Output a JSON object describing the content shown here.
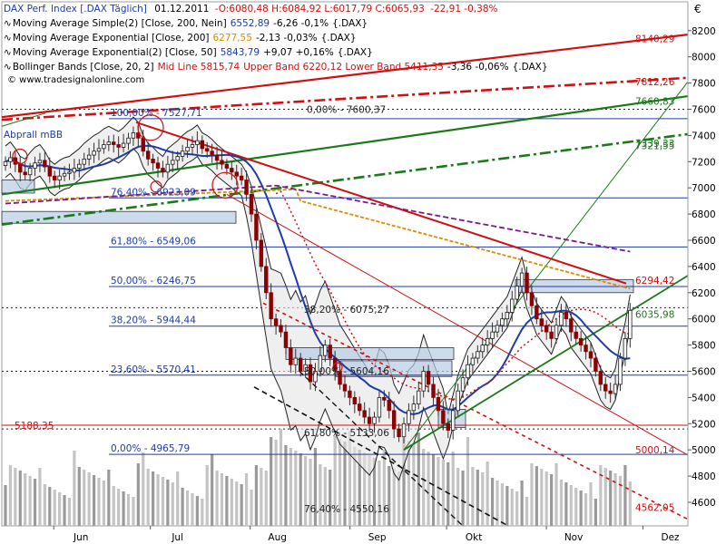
{
  "header": {
    "line1": {
      "symbol": "DAX Perf. Index [.DAX  Täglich]",
      "date": "01.12.2011",
      "ohlc": "-O:6080,48  H:6084,92  L:6017,79  C:6065,93",
      "change": "-22,91  -0,38%"
    },
    "indicators": [
      {
        "label": "Moving Average Simple(2) [Close, 200, Nein]",
        "value": "6552,89",
        "change": "-6,26  -0,1%",
        "tail": "{.DAX}",
        "color": "#1e3ca8"
      },
      {
        "label": "Moving Average Exponential [Close, 200]",
        "value": "6277,55",
        "change": "-2,13  -0,03%",
        "tail": "{.DAX}",
        "color": "#e08a00"
      },
      {
        "label": "Moving Average Exponential(2) [Close, 50]",
        "value": "5843,79",
        "change": "+9,07  +0,16%",
        "tail": "{.DAX}",
        "color": "#1e3ca8"
      },
      {
        "label": "Bollinger Bands [Close, 20, 2]",
        "mid": "Mid Line 5815,74",
        "value": "Upper Band 6220,12  Lower Band 5411,35",
        "change": "-3,36  -0,06%",
        "tail": "{.DAX}",
        "color": "#d01010"
      }
    ],
    "copyright": "© www.tradesignalonline.com",
    "currency": "€"
  },
  "chart_data": {
    "type": "candlestick",
    "instrument": "DAX Perf. Index",
    "yaxis": {
      "min": 4420,
      "max": 8420,
      "ticks": [
        4600,
        4800,
        5000,
        5200,
        5400,
        5600,
        5800,
        6000,
        6200,
        6400,
        6600,
        6800,
        7000,
        7200,
        7400,
        7600,
        7800,
        8000,
        8200
      ]
    },
    "xaxis": {
      "months": [
        {
          "label": "Jun",
          "date": "2011-06-01"
        },
        {
          "label": "Jul",
          "date": "2011-07-01"
        },
        {
          "label": "Aug",
          "date": "2011-08-01"
        },
        {
          "label": "Sep",
          "date": "2011-09-01"
        },
        {
          "label": "Okt",
          "date": "2011-10-01"
        },
        {
          "label": "Nov",
          "date": "2011-11-01"
        },
        {
          "label": "Dez",
          "date": "2011-12-01"
        }
      ]
    },
    "closes": [
      7200,
      7230,
      7180,
      7120,
      7100,
      7150,
      7190,
      7210,
      7160,
      7090,
      7060,
      7090,
      7110,
      7120,
      7150,
      7180,
      7220,
      7250,
      7280,
      7300,
      7330,
      7350,
      7330,
      7310,
      7340,
      7380,
      7420,
      7380,
      7280,
      7220,
      7190,
      7150,
      7120,
      7180,
      7210,
      7240,
      7280,
      7310,
      7330,
      7360,
      7300,
      7280,
      7250,
      7210,
      7180,
      7150,
      7120,
      7090,
      7060,
      6950,
      6800,
      6600,
      6400,
      6200,
      6000,
      5950,
      5900,
      5780,
      5650,
      5700,
      5600,
      5650,
      5520,
      5600,
      5720,
      5800,
      5700,
      5600,
      5500,
      5450,
      5400,
      5350,
      5300,
      5250,
      5200,
      5250,
      5400,
      5380,
      5300,
      5160,
      5100,
      5200,
      5300,
      5350,
      5450,
      5600,
      5500,
      5400,
      5300,
      5200,
      5150,
      5300,
      5450,
      5550,
      5650,
      5700,
      5750,
      5800,
      5850,
      5900,
      5950,
      6000,
      6050,
      6150,
      6250,
      6350,
      6200,
      6100,
      6000,
      5950,
      5900,
      5850,
      5950,
      6050,
      6000,
      5900,
      5850,
      5800,
      5750,
      5700,
      5600,
      5500,
      5450,
      5430,
      5500,
      5700,
      5850,
      6065
    ],
    "fibonacci": [
      {
        "label": "100,00% - 7527,71",
        "value": 7527.71
      },
      {
        "label": "76,40% - 6923,09",
        "value": 6923.09
      },
      {
        "label": "61,80% - 6549,06",
        "value": 6549.06
      },
      {
        "label": "50,00% - 6246,75",
        "value": 6246.75
      },
      {
        "label": "38,20% - 5944,44",
        "value": 5944.44
      },
      {
        "label": "23,60% - 5570,41",
        "value": 5570.41
      },
      {
        "label": "0,00% - 4965,79",
        "value": 4965.79
      }
    ],
    "fibonacci_2": [
      {
        "label": "0,00% - 7600,37",
        "value": 7600.37
      },
      {
        "label": "38,20% - 6075,27",
        "value": 6075.27
      },
      {
        "label": "50,00% - 5604,16",
        "value": 5604.16
      },
      {
        "label": "61,80% - 5133,06",
        "value": 5133.06
      },
      {
        "label": "76,40% - 4550,16",
        "value": 4550.16
      }
    ],
    "level_labels": [
      {
        "label": "8140,29",
        "value": 8140.29,
        "color": "#d01010"
      },
      {
        "label": "7812,26",
        "value": 7812.26,
        "color": "#d01010"
      },
      {
        "label": "7660,83",
        "value": 7660.83,
        "color": "#1a7a1a"
      },
      {
        "label": "7339,33",
        "value": 7339.33,
        "color": "#1a7a1a"
      },
      {
        "label": "7321,55",
        "value": 7321.55,
        "color": "#1a7a1a"
      },
      {
        "label": "6294,42",
        "value": 6294.42,
        "color": "#d01010"
      },
      {
        "label": "6035,98",
        "value": 6035.98,
        "color": "#1a7a1a"
      },
      {
        "label": "5000,14",
        "value": 5000.14,
        "color": "#d01010"
      },
      {
        "label": "4562,05",
        "value": 4562.05,
        "color": "#d01010"
      }
    ],
    "left_labels": [
      {
        "label": "5188,35",
        "value": 5188.35,
        "color": "#d01010"
      },
      {
        "label": "Abprall mBB",
        "value": 7410,
        "color": "#1e3ca8"
      }
    ],
    "colors": {
      "fib": "#1e3ca8",
      "resistance": "#d01010",
      "support": "#1a7a1a",
      "ema200": "#e08a00",
      "sma200": "#7a1a8a"
    }
  }
}
